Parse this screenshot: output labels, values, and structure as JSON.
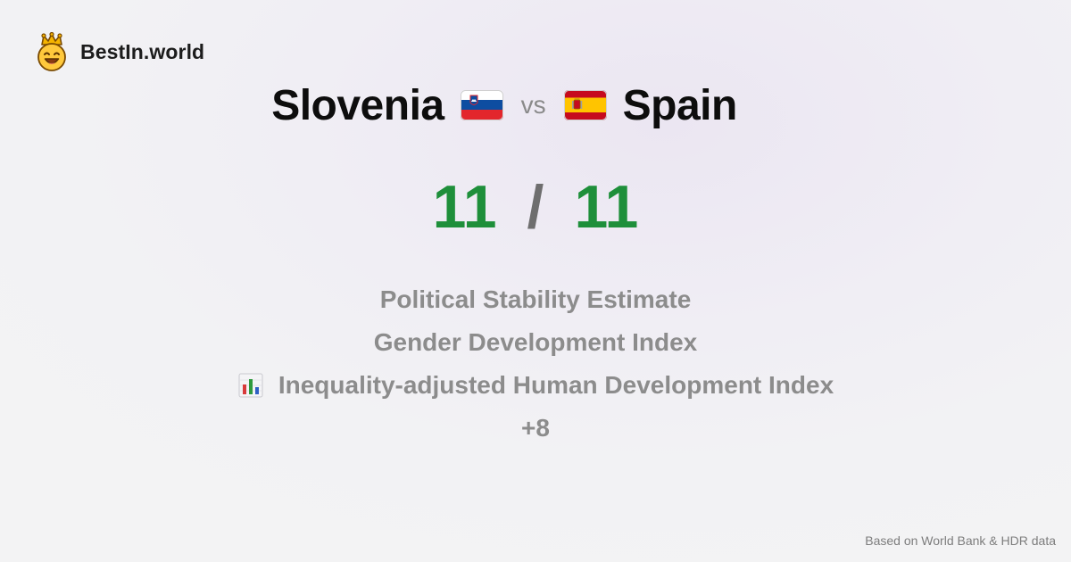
{
  "brand": {
    "name": "BestIn.world",
    "logo_icon": "crown-smiley-icon"
  },
  "comparison": {
    "left": {
      "name": "Slovenia",
      "flag_icon": "slovenia-flag-icon",
      "flag_colors": [
        "#ffffff",
        "#0d4da1",
        "#e3262c"
      ]
    },
    "vs_label": "vs",
    "right": {
      "name": "Spain",
      "flag_icon": "spain-flag-icon",
      "flag_colors": [
        "#c60b1e",
        "#ffc400",
        "#c60b1e"
      ]
    }
  },
  "score": {
    "left": "11",
    "separator": "/",
    "right": "11",
    "color": "#1e8f3a"
  },
  "metrics": [
    {
      "label": "Political Stability Estimate"
    },
    {
      "label": "Gender Development Index"
    },
    {
      "label": "Inequality-adjusted Human Development Index",
      "icon": "bar-chart-icon"
    },
    {
      "label": "+8"
    }
  ],
  "footer": {
    "source": "Based on World Bank & HDR data"
  }
}
